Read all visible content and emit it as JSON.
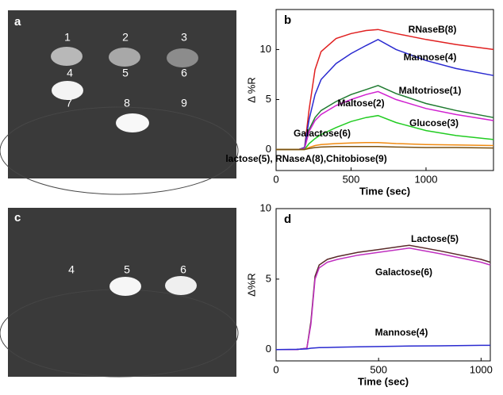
{
  "images": [
    {
      "panel": "a",
      "labels": [
        "1",
        "2",
        "3",
        "4",
        "5",
        "6",
        "7",
        "8",
        "9"
      ]
    },
    {
      "panel": "c",
      "labels": [
        "4",
        "5",
        "6"
      ]
    }
  ],
  "chart_data": [
    {
      "type": "line",
      "panel": "b",
      "x_label": "Time (sec)",
      "y_label": "Δ %R",
      "x": [
        0,
        150,
        190,
        220,
        260,
        300,
        400,
        500,
        600,
        680,
        800,
        1000,
        1200,
        1450
      ],
      "xlim": [
        0,
        1450
      ],
      "xticks": [
        0,
        500,
        1000
      ],
      "ylim": [
        -2.1,
        14
      ],
      "yticks": [
        0,
        5,
        10
      ],
      "series": [
        {
          "name": "RNaseB(8)",
          "color": "#e02020",
          "values": [
            0,
            0,
            0.2,
            4,
            8,
            9.8,
            11.1,
            11.6,
            11.9,
            12.0,
            11.6,
            11,
            10.5,
            10
          ]
        },
        {
          "name": "Mannose(4)",
          "color": "#2a2ad0",
          "values": [
            0,
            0,
            0.2,
            3,
            5.5,
            7,
            8.6,
            9.6,
            10.4,
            11.0,
            10,
            8.9,
            8.1,
            7.4
          ]
        },
        {
          "name": "Maltotriose(1)",
          "color": "#1f7a30",
          "values": [
            0,
            0,
            0.1,
            2,
            3.2,
            3.9,
            4.8,
            5.5,
            6.0,
            6.4,
            5.6,
            4.6,
            3.9,
            3.2
          ]
        },
        {
          "name": "Maltose(2)",
          "color": "#d020d0",
          "values": [
            0,
            0,
            0.1,
            1.8,
            2.9,
            3.5,
            4.4,
            5.0,
            5.5,
            5.8,
            5.0,
            4.1,
            3.5,
            2.9
          ]
        },
        {
          "name": "Glucose(3)",
          "color": "#22cc22",
          "values": [
            0,
            0,
            0,
            0.6,
            1.1,
            1.5,
            2.2,
            2.8,
            3.2,
            3.4,
            2.7,
            1.9,
            1.4,
            1.0
          ]
        },
        {
          "name": "Galactose(6)",
          "color": "#f08a10",
          "values": [
            0,
            0,
            0,
            0.2,
            0.4,
            0.5,
            0.6,
            0.65,
            0.7,
            0.7,
            0.6,
            0.5,
            0.45,
            0.4
          ]
        },
        {
          "name": "lactose(5), RNaseA(8),Chitobiose(9)",
          "color": "#7a5010",
          "values": [
            0,
            0,
            0,
            0.1,
            0.2,
            0.25,
            0.3,
            0.3,
            0.3,
            0.3,
            0.25,
            0.2,
            0.2,
            0.15
          ]
        }
      ]
    },
    {
      "type": "line",
      "panel": "d",
      "x_label": "Time (sec)",
      "y_label": "Δ%R",
      "x": [
        0,
        100,
        150,
        170,
        190,
        210,
        250,
        300,
        400,
        500,
        650,
        800,
        1000,
        1045
      ],
      "xlim": [
        0,
        1045
      ],
      "xticks": [
        0,
        500,
        1000
      ],
      "ylim": [
        -0.8,
        10
      ],
      "yticks": [
        0,
        5,
        10
      ],
      "series": [
        {
          "name": "Lactose(5)",
          "color": "#5a2a2a",
          "values": [
            0,
            0,
            0.1,
            2,
            5.2,
            6.0,
            6.4,
            6.6,
            6.9,
            7.1,
            7.4,
            7.0,
            6.4,
            6.2
          ]
        },
        {
          "name": "Galactose(6)",
          "color": "#c030c0",
          "values": [
            0,
            0,
            0.1,
            1.8,
            5.0,
            5.8,
            6.2,
            6.4,
            6.7,
            6.9,
            7.2,
            6.8,
            6.2,
            6.0
          ]
        },
        {
          "name": "Mannose(4)",
          "color": "#2a2ad0",
          "values": [
            0,
            0.02,
            0.05,
            0.1,
            0.12,
            0.14,
            0.15,
            0.17,
            0.2,
            0.22,
            0.25,
            0.27,
            0.3,
            0.3
          ]
        }
      ]
    }
  ]
}
